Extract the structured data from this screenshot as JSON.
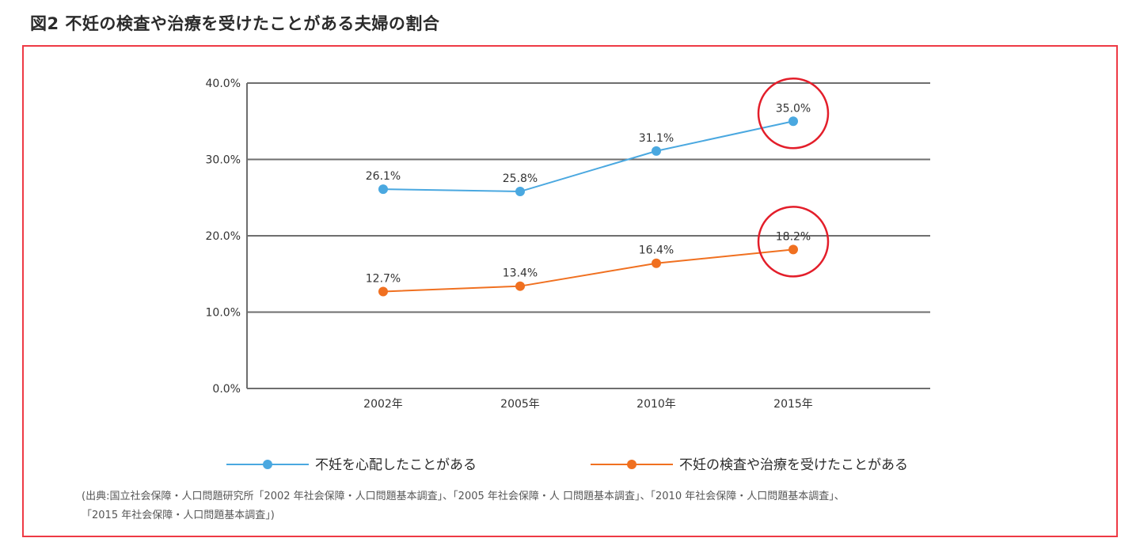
{
  "page": {
    "figure_title": "図2 不妊の検査や治療を受けたことがある夫婦の割合",
    "source_line1": "(出典:国立社会保障・人口問題研究所「2002 年社会保障・人口問題基本調査」、「2005 年社会保障・人 口問題基本調査」、「2010 年社会保障・人口問題基本調査」、",
    "source_line2": "「2015 年社会保障・人口問題基本調査」)",
    "frame_color": "#ee3a45",
    "highlight_color": "#e31e2a"
  },
  "chart_data": {
    "type": "line",
    "title": "図2 不妊の検査や治療を受けたことがある夫婦の割合",
    "xlabel": "",
    "ylabel": "",
    "categories": [
      "2002年",
      "2005年",
      "2010年",
      "2015年"
    ],
    "ylim": [
      0,
      40
    ],
    "yticks": [
      0,
      10,
      20,
      30,
      40
    ],
    "ytick_labels": [
      "0.0%",
      "10.0%",
      "20.0%",
      "30.0%",
      "40.0%"
    ],
    "grid": true,
    "legend_position": "bottom",
    "series": [
      {
        "name": "不妊を心配したことがある",
        "color": "#4aa8e0",
        "values": [
          26.1,
          25.8,
          31.1,
          35.0
        ],
        "labels": [
          "26.1%",
          "25.8%",
          "31.1%",
          "35.0%"
        ]
      },
      {
        "name": "不妊の検査や治療を受けたことがある",
        "color": "#f07020",
        "values": [
          12.7,
          13.4,
          16.4,
          18.2
        ],
        "labels": [
          "12.7%",
          "13.4%",
          "16.4%",
          "18.2%"
        ]
      }
    ],
    "annotations": [
      {
        "type": "circle",
        "series": 0,
        "category": "2015年",
        "note": "highlighted 35.0%"
      },
      {
        "type": "circle",
        "series": 1,
        "category": "2015年",
        "note": "highlighted 18.2%"
      }
    ]
  }
}
